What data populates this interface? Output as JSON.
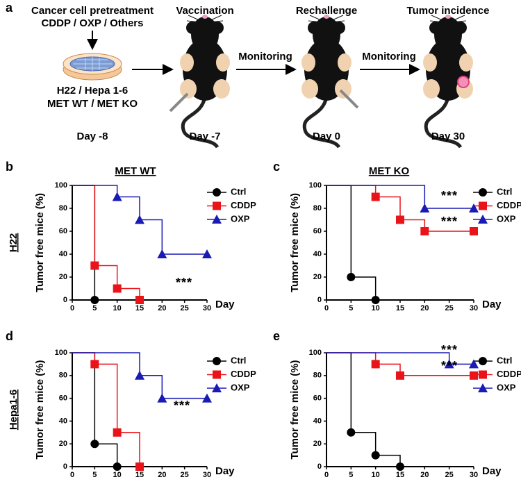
{
  "schematic": {
    "panel": "a",
    "step1": {
      "title": "Cancer cell pretreatment",
      "treatments": "CDDP / OXP / Others",
      "cells": "H22 / Hepa 1-6",
      "genotype": "MET WT / MET KO",
      "day": "Day -8"
    },
    "step2": {
      "title": "Vaccination",
      "day": "Day -7"
    },
    "arrow2": "Monitoring",
    "step3": {
      "title": "Rechallenge",
      "day": "Day 0"
    },
    "arrow3": "Monitoring",
    "step4": {
      "title": "Tumor incidence",
      "day": "Day 30"
    }
  },
  "chart_data": [
    {
      "type": "step",
      "panel": "b",
      "title": "MET WT",
      "row_label": "H22",
      "y_label": "Tumor free mice (%)",
      "x_label": "Day",
      "xlim": [
        0,
        30
      ],
      "ylim": [
        0,
        100
      ],
      "xticks": [
        0,
        5,
        10,
        15,
        20,
        25,
        30
      ],
      "yticks": [
        0,
        20,
        40,
        60,
        80,
        100
      ],
      "legend": "top-right",
      "series": [
        {
          "name": "Ctrl",
          "color": "#000000",
          "marker": "circle",
          "x": [
            0,
            5
          ],
          "values": [
            100,
            0
          ]
        },
        {
          "name": "CDDP",
          "color": "#e8141a",
          "marker": "square",
          "x": [
            0,
            5,
            10,
            15
          ],
          "values": [
            100,
            30,
            10,
            0
          ]
        },
        {
          "name": "OXP",
          "color": "#1a1ab4",
          "marker": "triangle",
          "x": [
            0,
            10,
            15,
            20,
            30
          ],
          "values": [
            100,
            90,
            70,
            40,
            40
          ]
        }
      ],
      "annotations": [
        "***"
      ]
    },
    {
      "type": "step",
      "panel": "c",
      "title": "MET KO",
      "y_label": "Tumor free mice (%)",
      "x_label": "Day",
      "xlim": [
        0,
        30
      ],
      "ylim": [
        0,
        100
      ],
      "xticks": [
        0,
        5,
        10,
        15,
        20,
        25,
        30
      ],
      "yticks": [
        0,
        20,
        40,
        60,
        80,
        100
      ],
      "legend": "top-right",
      "series": [
        {
          "name": "Ctrl",
          "color": "#000000",
          "marker": "circle",
          "x": [
            0,
            5,
            10
          ],
          "values": [
            100,
            20,
            0
          ]
        },
        {
          "name": "CDDP",
          "color": "#e8141a",
          "marker": "square",
          "x": [
            0,
            10,
            15,
            20,
            30
          ],
          "values": [
            100,
            90,
            70,
            60,
            60
          ]
        },
        {
          "name": "OXP",
          "color": "#1a1ab4",
          "marker": "triangle",
          "x": [
            0,
            20,
            30
          ],
          "values": [
            100,
            80,
            80
          ]
        }
      ],
      "annotations": [
        "***",
        "***"
      ]
    },
    {
      "type": "step",
      "panel": "d",
      "row_label": "Hepa1-6",
      "y_label": "Tumor free mice (%)",
      "x_label": "Day",
      "xlim": [
        0,
        30
      ],
      "ylim": [
        0,
        100
      ],
      "xticks": [
        0,
        5,
        10,
        15,
        20,
        25,
        30
      ],
      "yticks": [
        0,
        20,
        40,
        60,
        80,
        100
      ],
      "legend": "top-right",
      "series": [
        {
          "name": "Ctrl",
          "color": "#000000",
          "marker": "circle",
          "x": [
            0,
            5,
            10
          ],
          "values": [
            100,
            20,
            0
          ]
        },
        {
          "name": "CDDP",
          "color": "#e8141a",
          "marker": "square",
          "x": [
            0,
            5,
            10,
            15
          ],
          "values": [
            100,
            90,
            30,
            0
          ]
        },
        {
          "name": "OXP",
          "color": "#1a1ab4",
          "marker": "triangle",
          "x": [
            0,
            15,
            20,
            30
          ],
          "values": [
            100,
            80,
            60,
            60
          ]
        }
      ],
      "annotations": [
        "***"
      ]
    },
    {
      "type": "step",
      "panel": "e",
      "y_label": "Tumor free mice (%)",
      "x_label": "Day",
      "xlim": [
        0,
        30
      ],
      "ylim": [
        0,
        100
      ],
      "xticks": [
        0,
        5,
        10,
        15,
        20,
        25,
        30
      ],
      "yticks": [
        0,
        20,
        40,
        60,
        80,
        100
      ],
      "legend": "top-right",
      "series": [
        {
          "name": "Ctrl",
          "color": "#000000",
          "marker": "circle",
          "x": [
            0,
            5,
            10,
            15
          ],
          "values": [
            100,
            30,
            10,
            0
          ]
        },
        {
          "name": "CDDP",
          "color": "#e8141a",
          "marker": "square",
          "x": [
            0,
            10,
            15,
            30
          ],
          "values": [
            100,
            90,
            80,
            80
          ]
        },
        {
          "name": "OXP",
          "color": "#1a1ab4",
          "marker": "triangle",
          "x": [
            0,
            25,
            30
          ],
          "values": [
            100,
            90,
            90
          ]
        }
      ],
      "annotations": [
        "***",
        "***"
      ]
    }
  ]
}
